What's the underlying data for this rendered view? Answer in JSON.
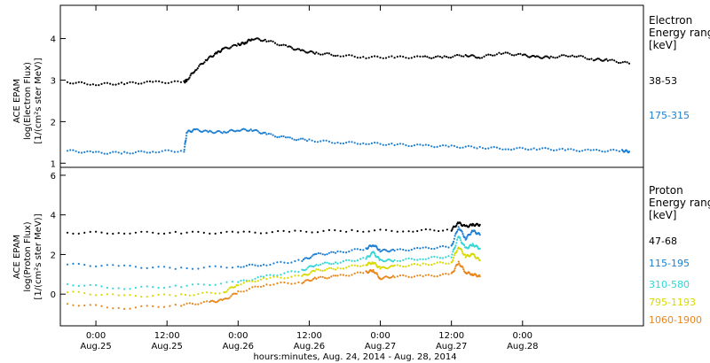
{
  "chart_data": [
    {
      "type": "scatter",
      "panel": "electron",
      "ylabel": [
        "ACE EPAM",
        "log(Electron Flux)",
        "[1/(cm²s ster MeV)]"
      ],
      "ylim": [
        0.9,
        4.8
      ],
      "yticks": [
        1,
        2,
        3,
        4
      ],
      "xlim": [
        -0.25,
        3.85
      ],
      "legend_title": [
        "Electron",
        "Energy range",
        "[keV]"
      ],
      "series": [
        {
          "name": "38-53",
          "color": "#000000",
          "x": [
            -0.2,
            0,
            0.2,
            0.4,
            0.62,
            0.64,
            0.7,
            0.78,
            0.85,
            0.9,
            1.0,
            1.05,
            1.1,
            1.2,
            1.35,
            1.45,
            1.55,
            1.7,
            1.9,
            2.1,
            2.3,
            2.45,
            2.6,
            2.7,
            2.85,
            3.0,
            3.1,
            3.2,
            3.35,
            3.5,
            3.6,
            3.75
          ],
          "y": [
            2.95,
            2.9,
            2.92,
            2.95,
            2.95,
            3.0,
            3.25,
            3.5,
            3.65,
            3.75,
            3.85,
            3.9,
            4.0,
            3.95,
            3.8,
            3.7,
            3.65,
            3.6,
            3.55,
            3.55,
            3.55,
            3.55,
            3.6,
            3.55,
            3.65,
            3.6,
            3.55,
            3.55,
            3.6,
            3.5,
            3.48,
            3.4
          ]
        },
        {
          "name": "175-315",
          "color": "#1e7fd2",
          "x": [
            -0.2,
            0,
            0.2,
            0.4,
            0.62,
            0.64,
            0.7,
            0.8,
            0.9,
            1.0,
            1.1,
            1.2,
            1.35,
            1.5,
            1.7,
            1.9,
            2.1,
            2.3,
            2.5,
            2.7,
            2.9,
            3.1,
            3.3,
            3.5,
            3.7,
            3.75
          ],
          "y": [
            1.3,
            1.25,
            1.25,
            1.28,
            1.3,
            1.75,
            1.8,
            1.75,
            1.75,
            1.8,
            1.8,
            1.7,
            1.6,
            1.55,
            1.5,
            1.48,
            1.45,
            1.42,
            1.4,
            1.38,
            1.35,
            1.35,
            1.32,
            1.3,
            1.3,
            1.28
          ]
        }
      ]
    },
    {
      "type": "scatter",
      "panel": "proton",
      "ylabel": [
        "ACE EPAM",
        "log(Proton Flux)",
        "[1/(cm²s ster MeV)]"
      ],
      "ylim": [
        -1.6,
        6.4
      ],
      "yticks": [
        0,
        2,
        4,
        6
      ],
      "xlim": [
        -0.25,
        3.85
      ],
      "x_tick_labels": [
        {
          "x": 0.0,
          "time": "0:00",
          "date": "Aug.25"
        },
        {
          "x": 0.5,
          "time": "12:00",
          "date": "Aug.25"
        },
        {
          "x": 1.0,
          "time": "0:00",
          "date": "Aug.26"
        },
        {
          "x": 1.5,
          "time": "12:00",
          "date": "Aug.26"
        },
        {
          "x": 2.0,
          "time": "0:00",
          "date": "Aug.27"
        },
        {
          "x": 2.5,
          "time": "12:00",
          "date": "Aug.27"
        },
        {
          "x": 3.0,
          "time": "0:00",
          "date": "Aug.28"
        }
      ],
      "xlabel": "hours:minutes, Aug. 24, 2014 - Aug. 28, 2014",
      "legend_title": [
        "Proton",
        "Energy range",
        "[keV]"
      ],
      "series": [
        {
          "name": "47-68",
          "color": "#000000",
          "x": [
            -0.2,
            0.2,
            0.6,
            1.0,
            1.4,
            1.8,
            2.2,
            2.5,
            2.55,
            2.6,
            2.65,
            2.7
          ],
          "y": [
            3.1,
            3.1,
            3.1,
            3.1,
            3.15,
            3.2,
            3.2,
            3.25,
            3.6,
            3.4,
            3.5,
            3.5
          ]
        },
        {
          "name": "115-195",
          "color": "#1e7fd2",
          "x": [
            -0.2,
            0.2,
            0.6,
            1.0,
            1.2,
            1.45,
            1.55,
            1.7,
            1.9,
            1.95,
            2.0,
            2.1,
            2.3,
            2.5,
            2.55,
            2.6,
            2.65,
            2.7
          ],
          "y": [
            1.5,
            1.4,
            1.3,
            1.4,
            1.5,
            1.7,
            2.0,
            2.1,
            2.3,
            2.5,
            2.2,
            2.2,
            2.3,
            2.4,
            3.4,
            2.8,
            3.2,
            3.0
          ]
        },
        {
          "name": "310-580",
          "color": "#33d6d6",
          "x": [
            -0.2,
            0.2,
            0.6,
            1.0,
            1.2,
            1.45,
            1.55,
            1.7,
            1.9,
            1.95,
            2.0,
            2.1,
            2.3,
            2.5,
            2.55,
            2.6,
            2.65,
            2.7
          ],
          "y": [
            0.5,
            0.3,
            0.4,
            0.6,
            0.9,
            1.2,
            1.5,
            1.6,
            1.8,
            2.1,
            1.7,
            1.7,
            1.8,
            1.9,
            2.9,
            2.3,
            2.5,
            2.3
          ]
        },
        {
          "name": "795-1193",
          "color": "#d9d900",
          "x": [
            -0.2,
            0.2,
            0.6,
            0.9,
            1.0,
            1.2,
            1.45,
            1.55,
            1.7,
            1.9,
            1.95,
            2.0,
            2.1,
            2.3,
            2.5,
            2.55,
            2.6,
            2.65,
            2.7
          ],
          "y": [
            0.1,
            -0.1,
            -0.05,
            0.1,
            0.5,
            0.8,
            0.9,
            1.2,
            1.3,
            1.5,
            1.6,
            1.3,
            1.4,
            1.5,
            1.6,
            2.4,
            1.9,
            2.0,
            1.7
          ]
        },
        {
          "name": "1060-1900",
          "color": "#e8861a",
          "x": [
            -0.2,
            0.2,
            0.6,
            0.8,
            0.9,
            1.0,
            1.2,
            1.45,
            1.55,
            1.7,
            1.9,
            1.95,
            2.0,
            2.1,
            2.3,
            2.5,
            2.55,
            2.6,
            2.65,
            2.7
          ],
          "y": [
            -0.5,
            -0.7,
            -0.55,
            -0.4,
            -0.3,
            0.1,
            0.5,
            0.6,
            0.8,
            0.9,
            1.1,
            1.2,
            0.8,
            0.9,
            0.9,
            1.0,
            1.6,
            1.1,
            1.0,
            0.9
          ]
        }
      ]
    }
  ]
}
